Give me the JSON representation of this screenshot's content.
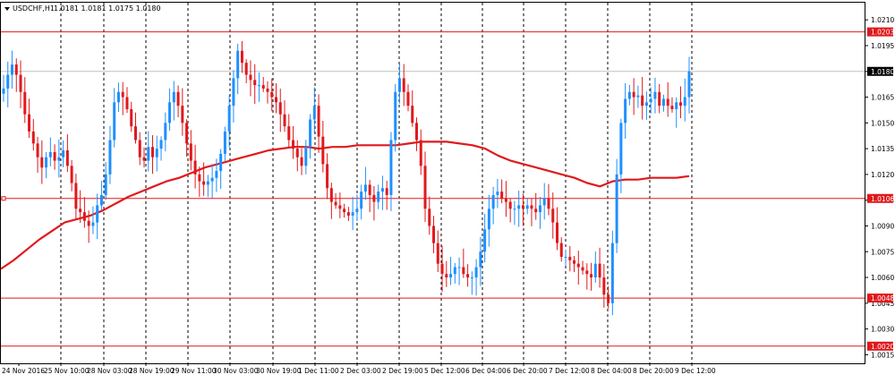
{
  "header": {
    "symbol": "USDCHF,H1",
    "ohlc": "1.0181 1.0181 1.0175 1.0180"
  },
  "colors": {
    "background": "#ffffff",
    "frame": "#000000",
    "bull": "#1e90ff",
    "bear": "#e0191c",
    "ma": "#e0191c",
    "hline": "#e0191c",
    "bid_line": "#c0c0c0",
    "price_tag_bg": "#000000",
    "price_tag_text": "#ffffff"
  },
  "chart_data": {
    "type": "candlestick",
    "symbol": "USDCHF",
    "timeframe": "H1",
    "ylim": [
      1.001,
      1.022
    ],
    "y_ticks": [
      "1.0210",
      "1.0195",
      "1.0180",
      "1.0165",
      "1.0150",
      "1.0135",
      "1.0120",
      "1.0105",
      "1.0090",
      "1.0075",
      "1.0060",
      "1.0045",
      "1.0030",
      "1.0015"
    ],
    "x_ticks": [
      "24 Nov 2016",
      "25 Nov 10:00",
      "28 Nov 03:00",
      "28 Nov 19:00",
      "29 Nov 11:00",
      "30 Nov 03:00",
      "30 Nov 19:00",
      "1 Dec 11:00",
      "2 Dec 03:00",
      "2 Dec 19:00",
      "5 Dec 12:00",
      "6 Dec 04:00",
      "6 Dec 20:00",
      "7 Dec 12:00",
      "8 Dec 04:00",
      "8 Dec 20:00",
      "9 Dec 12:00"
    ],
    "horizontal_levels": [
      {
        "value": 1.0203,
        "label": "1.0203"
      },
      {
        "value": 1.0106,
        "label": "1.0106"
      },
      {
        "value": 1.0048,
        "label": "1.0048"
      },
      {
        "value": 1.002,
        "label": "1.0020"
      }
    ],
    "current_price": {
      "value": 1.018,
      "label": "1.0180"
    },
    "candle_path": [
      1.017,
      1.0178,
      1.0184,
      1.0178,
      1.0168,
      1.0155,
      1.0145,
      1.0138,
      1.013,
      1.0124,
      1.013,
      1.0133,
      1.0128,
      1.013,
      1.0134,
      1.0125,
      1.0115,
      1.01,
      1.0098,
      1.0093,
      1.009,
      1.0092,
      1.0102,
      1.0108,
      1.012,
      1.014,
      1.0162,
      1.0168,
      1.0165,
      1.0158,
      1.0148,
      1.014,
      1.013,
      1.0128,
      1.0136,
      1.013,
      1.0135,
      1.014,
      1.015,
      1.0162,
      1.0168,
      1.016,
      1.015,
      1.0138,
      1.0128,
      1.012,
      1.0116,
      1.0114,
      1.0116,
      1.0118,
      1.0122,
      1.0132,
      1.0145,
      1.016,
      1.0176,
      1.0192,
      1.0185,
      1.0178,
      1.0175,
      1.0172,
      1.0172,
      1.017,
      1.0168,
      1.0165,
      1.0162,
      1.0155,
      1.0148,
      1.014,
      1.0135,
      1.013,
      1.0125,
      1.0136,
      1.0152,
      1.016,
      1.0142,
      1.0126,
      1.0112,
      1.0104,
      1.0102,
      1.01,
      1.0098,
      1.0096,
      1.0098,
      1.01,
      1.011,
      1.0114,
      1.0108,
      1.0104,
      1.011,
      1.0112,
      1.0108,
      1.014,
      1.0168,
      1.0176,
      1.0168,
      1.016,
      1.015,
      1.014,
      1.0125,
      1.01,
      1.009,
      1.008,
      1.0068,
      1.0062,
      1.006,
      1.0062,
      1.0066,
      1.0066,
      1.0062,
      1.006,
      1.006,
      1.0066,
      1.0075,
      1.0088,
      1.01,
      1.0108,
      1.011,
      1.0106,
      1.0104,
      1.01,
      1.01,
      1.0102,
      1.01,
      1.0102,
      1.01,
      1.0098,
      1.0102,
      1.0106,
      1.01,
      1.0092,
      1.008,
      1.0072,
      1.0072,
      1.007,
      1.0068,
      1.0066,
      1.0064,
      1.0062,
      1.006,
      1.0068,
      1.006,
      1.005,
      1.0045,
      1.008,
      1.012,
      1.015,
      1.0164,
      1.0168,
      1.0165,
      1.0166,
      1.016,
      1.0162,
      1.0164,
      1.0168,
      1.016,
      1.0164,
      1.016,
      1.0158,
      1.0162,
      1.016,
      1.0165,
      1.018
    ],
    "moving_average": {
      "period": 200,
      "path": [
        1.0065,
        1.007,
        1.0076,
        1.0082,
        1.0087,
        1.0092,
        1.0094,
        1.0096,
        1.0099,
        1.0103,
        1.0107,
        1.011,
        1.0113,
        1.0116,
        1.0118,
        1.0121,
        1.0124,
        1.0126,
        1.0128,
        1.013,
        1.0132,
        1.0134,
        1.0135,
        1.0136,
        1.0136,
        1.0135,
        1.0136,
        1.0136,
        1.0137,
        1.0137,
        1.0137,
        1.0137,
        1.0138,
        1.0139,
        1.0139,
        1.0139,
        1.0138,
        1.0137,
        1.0135,
        1.0131,
        1.0128,
        1.0126,
        1.0124,
        1.0122,
        1.012,
        1.0118,
        1.0115,
        1.0113,
        1.0116,
        1.0117,
        1.0117,
        1.0118,
        1.0118,
        1.0118,
        1.0119
      ]
    },
    "grid": "vertical-dashed",
    "y_axis_position": "right"
  }
}
